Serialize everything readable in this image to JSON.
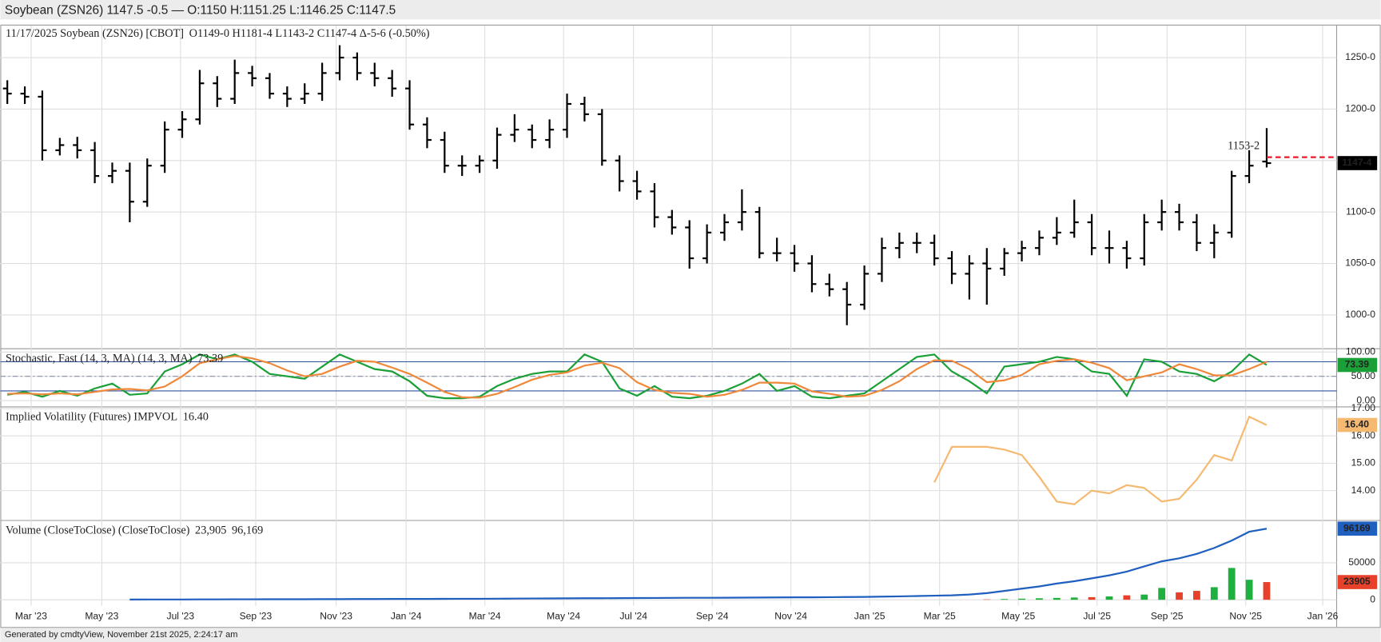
{
  "header": "Soybean (ZSN26) 1147.5 -0.5 — O:1150 H:1151.25 L:1146.25 C:1147.5",
  "footer": "Generated by cmdtyView, November 21st 2025, 2:24:17 am",
  "chart_data": [
    {
      "type": "ohlc",
      "title": "11/17/2025 Soybean (ZSN26) [CBOT]",
      "legend": "O1149-0 H1181-4 L1143-2 C1147-4 Δ-5-6 (-0.50%)",
      "color": "#000000",
      "up_color": "#20b040",
      "down_color": "#e8412b",
      "grid": true,
      "open": [
        1220,
        1215,
        1212,
        1160,
        1165,
        1160,
        1135,
        1140,
        1110,
        1145,
        1180,
        1190,
        1225,
        1210,
        1235,
        1230,
        1215,
        1210,
        1215,
        1235,
        1250,
        1235,
        1230,
        1220,
        1185,
        1170,
        1145,
        1145,
        1150,
        1175,
        1180,
        1170,
        1180,
        1205,
        1195,
        1150,
        1130,
        1120,
        1095,
        1085,
        1055,
        1080,
        1090,
        1100,
        1060,
        1060,
        1050,
        1030,
        1025,
        1010,
        1040,
        1065,
        1070,
        1070,
        1055,
        1040,
        1050,
        1045,
        1060,
        1065,
        1075,
        1080,
        1090,
        1065,
        1065,
        1055,
        1090,
        1100,
        1090,
        1070,
        1080,
        1135,
        1149
      ],
      "high": [
        1228,
        1222,
        1218,
        1172,
        1173,
        1168,
        1148,
        1148,
        1152,
        1188,
        1198,
        1238,
        1232,
        1248,
        1242,
        1235,
        1222,
        1225,
        1245,
        1262,
        1255,
        1245,
        1238,
        1228,
        1192,
        1178,
        1155,
        1155,
        1182,
        1195,
        1185,
        1190,
        1215,
        1212,
        1200,
        1155,
        1140,
        1128,
        1102,
        1092,
        1088,
        1098,
        1122,
        1105,
        1075,
        1068,
        1058,
        1040,
        1032,
        1048,
        1075,
        1080,
        1080,
        1078,
        1062,
        1058,
        1065,
        1065,
        1072,
        1082,
        1095,
        1112,
        1098,
        1082,
        1072,
        1098,
        1112,
        1108,
        1098,
        1088,
        1140,
        1160,
        1181.5
      ],
      "low": [
        1205,
        1205,
        1150,
        1155,
        1152,
        1128,
        1128,
        1090,
        1105,
        1138,
        1172,
        1185,
        1202,
        1205,
        1222,
        1210,
        1202,
        1205,
        1208,
        1228,
        1228,
        1222,
        1212,
        1180,
        1162,
        1138,
        1135,
        1138,
        1142,
        1168,
        1162,
        1162,
        1172,
        1188,
        1145,
        1120,
        1112,
        1085,
        1078,
        1045,
        1050,
        1072,
        1082,
        1055,
        1052,
        1042,
        1022,
        1018,
        990,
        1005,
        1032,
        1055,
        1060,
        1048,
        1030,
        1015,
        1010,
        1038,
        1052,
        1058,
        1068,
        1075,
        1058,
        1050,
        1045,
        1048,
        1082,
        1082,
        1062,
        1055,
        1075,
        1128,
        1143.25
      ],
      "close": [
        1215,
        1212,
        1160,
        1165,
        1160,
        1135,
        1140,
        1110,
        1145,
        1180,
        1190,
        1225,
        1210,
        1235,
        1230,
        1215,
        1210,
        1215,
        1235,
        1250,
        1235,
        1230,
        1220,
        1185,
        1170,
        1145,
        1145,
        1150,
        1175,
        1180,
        1170,
        1180,
        1205,
        1195,
        1150,
        1130,
        1120,
        1095,
        1085,
        1055,
        1080,
        1090,
        1100,
        1060,
        1060,
        1050,
        1030,
        1025,
        1010,
        1040,
        1065,
        1070,
        1070,
        1055,
        1040,
        1050,
        1045,
        1060,
        1065,
        1075,
        1080,
        1090,
        1065,
        1065,
        1055,
        1090,
        1100,
        1090,
        1070,
        1080,
        1135,
        1145,
        1147.5
      ],
      "last_label": "1147-4",
      "reference": {
        "value": 1153.25,
        "label": "1153-2",
        "color": "#e8182b"
      },
      "ylim": [
        968,
        1282
      ],
      "yticks": [
        {
          "value": 1000,
          "label": "1000-0"
        },
        {
          "value": 1050,
          "label": "1050-0"
        },
        {
          "value": 1100,
          "label": "1100-0"
        },
        {
          "value": 1150,
          "label": "1150-0"
        },
        {
          "value": 1200,
          "label": "1200-0"
        },
        {
          "value": 1250,
          "label": "1250-0"
        }
      ],
      "xlim": [
        -0.4,
        76
      ],
      "xticks": [
        {
          "value": 1.36,
          "label": "Mar '23"
        },
        {
          "value": 5.4,
          "label": "May '23"
        },
        {
          "value": 9.9,
          "label": "Jul '23"
        },
        {
          "value": 14.2,
          "label": "Sep '23"
        },
        {
          "value": 18.8,
          "label": "Nov '23"
        },
        {
          "value": 22.8,
          "label": "Jan '24"
        },
        {
          "value": 27.3,
          "label": "Mar '24"
        },
        {
          "value": 31.8,
          "label": "May '24"
        },
        {
          "value": 35.8,
          "label": "Jul '24"
        },
        {
          "value": 40.3,
          "label": "Sep '24"
        },
        {
          "value": 44.8,
          "label": "Nov '24"
        },
        {
          "value": 49.3,
          "label": "Jan '25"
        },
        {
          "value": 53.3,
          "label": "Mar '25"
        },
        {
          "value": 57.8,
          "label": "May '25"
        },
        {
          "value": 62.3,
          "label": "Jul '25"
        },
        {
          "value": 66.3,
          "label": "Sep '25"
        },
        {
          "value": 70.8,
          "label": "Nov '25"
        },
        {
          "value": 75.2,
          "label": "Jan '26"
        }
      ]
    },
    {
      "type": "line",
      "title": "Stochastic, Fast (14, 3, MA)  (14, 3, MA)",
      "series": [
        {
          "color": "#1aa037",
          "last_label": "73.39",
          "values": [
            12,
            18,
            8,
            20,
            10,
            25,
            35,
            12,
            15,
            60,
            75,
            95,
            85,
            95,
            80,
            55,
            50,
            45,
            70,
            95,
            80,
            65,
            60,
            40,
            10,
            5,
            5,
            8,
            30,
            45,
            55,
            60,
            60,
            95,
            80,
            25,
            10,
            30,
            8,
            5,
            10,
            20,
            35,
            55,
            20,
            30,
            8,
            5,
            10,
            15,
            40,
            65,
            90,
            95,
            60,
            40,
            15,
            70,
            75,
            80,
            90,
            85,
            60,
            55,
            10,
            85,
            80,
            60,
            55,
            40,
            60,
            95,
            73.39
          ]
        },
        {
          "color": "#f0883a",
          "values": [
            14,
            15,
            13,
            15,
            13,
            18,
            23,
            24,
            21,
            29,
            50,
            77,
            85,
            92,
            87,
            77,
            62,
            50,
            55,
            70,
            82,
            80,
            68,
            55,
            37,
            18,
            7,
            6,
            14,
            28,
            43,
            53,
            58,
            72,
            78,
            67,
            38,
            22,
            16,
            14,
            8,
            12,
            22,
            37,
            37,
            35,
            19,
            14,
            8,
            10,
            22,
            40,
            65,
            83,
            82,
            65,
            38,
            42,
            53,
            75,
            82,
            85,
            78,
            67,
            42,
            50,
            58,
            75,
            65,
            52,
            52,
            65,
            80
          ]
        }
      ],
      "levels": [
        20,
        80
      ],
      "level_color": "#3050a0",
      "midline": 50,
      "ylim": [
        -11,
        105
      ],
      "yticks": [
        {
          "value": 0,
          "label": "0.00"
        },
        {
          "value": 50,
          "label": "50.00"
        },
        {
          "value": 100,
          "label": "100.00"
        }
      ]
    },
    {
      "type": "line",
      "title": "Implied Volatility (Futures)  IMPVOL",
      "series": [
        {
          "color": "#f5b971",
          "last_label": "16.40",
          "values": [
            null,
            null,
            null,
            null,
            null,
            null,
            null,
            null,
            null,
            null,
            null,
            null,
            null,
            null,
            null,
            null,
            null,
            null,
            null,
            null,
            null,
            null,
            null,
            null,
            null,
            null,
            null,
            null,
            null,
            null,
            null,
            null,
            null,
            null,
            null,
            null,
            null,
            null,
            null,
            null,
            null,
            null,
            null,
            null,
            null,
            null,
            null,
            null,
            null,
            null,
            null,
            null,
            null,
            14.3,
            15.6,
            15.6,
            15.6,
            15.5,
            15.3,
            14.5,
            13.6,
            13.5,
            14.0,
            13.9,
            14.2,
            14.1,
            13.6,
            13.7,
            14.4,
            15.3,
            15.1,
            16.7,
            16.4
          ]
        }
      ],
      "ylim": [
        12.94,
        17.03
      ],
      "yticks": [
        {
          "value": 14,
          "label": "14.00"
        },
        {
          "value": 15,
          "label": "15.00"
        },
        {
          "value": 16,
          "label": "16.00"
        },
        {
          "value": 17,
          "label": "17.00"
        }
      ]
    },
    {
      "type": "volume",
      "title": "Volume (CloseToClose)  (CloseToClose)",
      "series": [
        {
          "kind": "bar",
          "color": "#e8412b",
          "legend_label": "23,905",
          "last_label": "23905",
          "values": [
            null,
            null,
            null,
            null,
            null,
            null,
            null,
            null,
            null,
            null,
            null,
            null,
            null,
            null,
            null,
            null,
            null,
            null,
            null,
            null,
            null,
            null,
            null,
            null,
            null,
            null,
            null,
            null,
            null,
            null,
            null,
            null,
            null,
            null,
            null,
            null,
            null,
            null,
            null,
            null,
            null,
            null,
            null,
            null,
            null,
            null,
            null,
            null,
            null,
            null,
            null,
            null,
            null,
            null,
            null,
            null,
            500,
            1000,
            1500,
            2000,
            2500,
            3000,
            3500,
            4500,
            6000,
            7000,
            16000,
            10000,
            12000,
            17000,
            43000,
            27000,
            23905
          ]
        },
        {
          "kind": "line",
          "color": "#1f5fbf",
          "legend_label": "96,169",
          "last_label": "96169",
          "values": [
            null,
            null,
            null,
            null,
            null,
            null,
            null,
            300,
            350,
            400,
            450,
            500,
            550,
            600,
            650,
            700,
            750,
            800,
            850,
            900,
            950,
            1000,
            1050,
            1100,
            1150,
            1200,
            1300,
            1400,
            1500,
            1600,
            1700,
            1800,
            1900,
            2000,
            2100,
            2200,
            2300,
            2400,
            2500,
            2600,
            2700,
            2800,
            2900,
            3000,
            3100,
            3200,
            3300,
            3500,
            3700,
            3900,
            4200,
            4600,
            5000,
            5500,
            6000,
            7000,
            9000,
            12000,
            15000,
            18000,
            22000,
            25000,
            29000,
            33000,
            38000,
            45000,
            52000,
            56000,
            62000,
            70000,
            80000,
            92000,
            96169
          ]
        }
      ],
      "ylim": [
        -8300,
        106000
      ],
      "yticks": [
        0,
        50000
      ]
    }
  ]
}
